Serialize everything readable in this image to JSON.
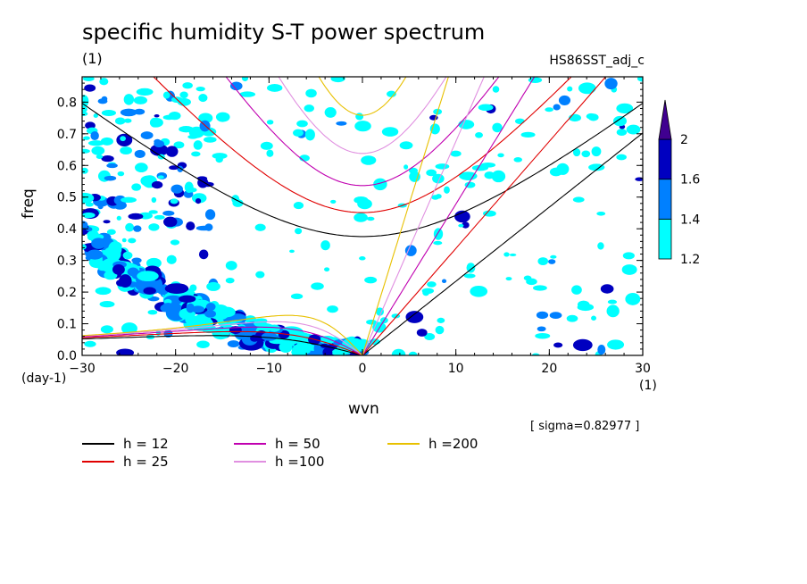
{
  "chart_data": {
    "type": "heatmap",
    "title": "specific humidity S-T power spectrum",
    "title_unit": "(1)",
    "run_name": "HS86SST_adj_c",
    "xlabel": "wvn",
    "xlabel_unit": "(1)",
    "ylabel": "freq",
    "ylabel_unit": "(day-1)",
    "xlim": [
      -30,
      30
    ],
    "ylim": [
      0,
      0.88
    ],
    "xticks": [
      "−30",
      "−20",
      "−10",
      "0",
      "10",
      "20",
      "30"
    ],
    "yticks": [
      "0.0",
      "0.1",
      "0.2",
      "0.3",
      "0.4",
      "0.5",
      "0.6",
      "0.7",
      "0.8"
    ],
    "colorbar": {
      "levels": [
        "1.2",
        "1.4",
        "1.6",
        "2"
      ],
      "colors": [
        "#00ffff",
        "#0080ff",
        "#0000c0",
        "#400090"
      ],
      "extend": "max"
    },
    "sigma_note": "[ sigma=0.82977 ]",
    "dispersion_curves": [
      {
        "label": "h = 12",
        "h": 12,
        "color": "#000000"
      },
      {
        "label": "h = 25",
        "h": 25,
        "color": "#e00000"
      },
      {
        "label": "h = 50",
        "h": 50,
        "color": "#c000b0"
      },
      {
        "label": "h =100",
        "h": 100,
        "color": "#e090e0"
      },
      {
        "label": "h =200",
        "h": 200,
        "color": "#e8c000"
      }
    ],
    "grid": false,
    "legend_position": "bottom-left"
  }
}
